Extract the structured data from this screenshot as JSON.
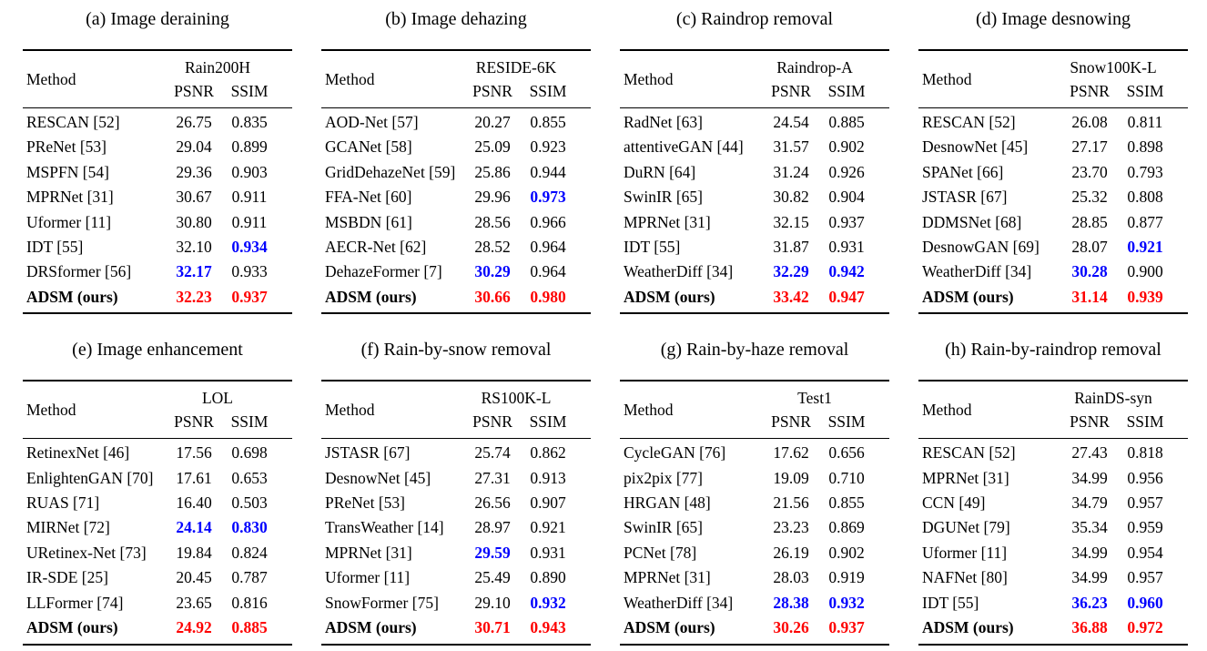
{
  "colors": {
    "best": "#fe0000",
    "second": "#0000fe",
    "text": "#000000"
  },
  "headers": {
    "method": "Method",
    "psnr": "PSNR",
    "ssim": "SSIM"
  },
  "tables": [
    {
      "caption": "(a) Image deraining",
      "dataset": "Rain200H",
      "rows": [
        {
          "method": "RESCAN [52]",
          "psnr": "26.75",
          "ssim": "0.835"
        },
        {
          "method": "PReNet [53]",
          "psnr": "29.04",
          "ssim": "0.899"
        },
        {
          "method": "MSPFN [54]",
          "psnr": "29.36",
          "ssim": "0.903"
        },
        {
          "method": "MPRNet [31]",
          "psnr": "30.67",
          "ssim": "0.911"
        },
        {
          "method": "Uformer [11]",
          "psnr": "30.80",
          "ssim": "0.911"
        },
        {
          "method": "IDT [55]",
          "psnr": "32.10",
          "ssim": "0.934",
          "ssim_c": "second"
        },
        {
          "method": "DRSformer [56]",
          "psnr": "32.17",
          "psnr_c": "second",
          "ssim": "0.933"
        },
        {
          "method": "ADSM (ours)",
          "bold": true,
          "psnr": "32.23",
          "psnr_c": "best",
          "ssim": "0.937",
          "ssim_c": "best"
        }
      ]
    },
    {
      "caption": "(b) Image dehazing",
      "dataset": "RESIDE-6K",
      "rows": [
        {
          "method": "AOD-Net [57]",
          "psnr": "20.27",
          "ssim": "0.855"
        },
        {
          "method": "GCANet [58]",
          "psnr": "25.09",
          "ssim": "0.923"
        },
        {
          "method": "GridDehazeNet [59]",
          "psnr": "25.86",
          "ssim": "0.944"
        },
        {
          "method": "FFA-Net [60]",
          "psnr": "29.96",
          "ssim": "0.973",
          "ssim_c": "second"
        },
        {
          "method": "MSBDN [61]",
          "psnr": "28.56",
          "ssim": "0.966"
        },
        {
          "method": "AECR-Net [62]",
          "psnr": "28.52",
          "ssim": "0.964"
        },
        {
          "method": "DehazeFormer [7]",
          "psnr": "30.29",
          "psnr_c": "second",
          "ssim": "0.964"
        },
        {
          "method": "ADSM (ours)",
          "bold": true,
          "psnr": "30.66",
          "psnr_c": "best",
          "ssim": "0.980",
          "ssim_c": "best"
        }
      ]
    },
    {
      "caption": "(c) Raindrop removal",
      "dataset": "Raindrop-A",
      "rows": [
        {
          "method": "RadNet [63]",
          "psnr": "24.54",
          "ssim": "0.885"
        },
        {
          "method": "attentiveGAN [44]",
          "psnr": "31.57",
          "ssim": "0.902"
        },
        {
          "method": "DuRN [64]",
          "psnr": "31.24",
          "ssim": "0.926"
        },
        {
          "method": "SwinIR [65]",
          "psnr": "30.82",
          "ssim": "0.904"
        },
        {
          "method": "MPRNet [31]",
          "psnr": "32.15",
          "ssim": "0.937"
        },
        {
          "method": "IDT [55]",
          "psnr": "31.87",
          "ssim": "0.931"
        },
        {
          "method": "WeatherDiff [34]",
          "psnr": "32.29",
          "psnr_c": "second",
          "ssim": "0.942",
          "ssim_c": "second"
        },
        {
          "method": "ADSM (ours)",
          "bold": true,
          "psnr": "33.42",
          "psnr_c": "best",
          "ssim": "0.947",
          "ssim_c": "best"
        }
      ]
    },
    {
      "caption": "(d) Image desnowing",
      "dataset": "Snow100K-L",
      "rows": [
        {
          "method": "RESCAN [52]",
          "psnr": "26.08",
          "ssim": "0.811"
        },
        {
          "method": "DesnowNet [45]",
          "psnr": "27.17",
          "ssim": "0.898"
        },
        {
          "method": "SPANet [66]",
          "psnr": "23.70",
          "ssim": "0.793"
        },
        {
          "method": "JSTASR [67]",
          "psnr": "25.32",
          "ssim": "0.808"
        },
        {
          "method": "DDMSNet [68]",
          "psnr": "28.85",
          "ssim": "0.877"
        },
        {
          "method": "DesnowGAN [69]",
          "psnr": "28.07",
          "ssim": "0.921",
          "ssim_c": "second"
        },
        {
          "method": "WeatherDiff [34]",
          "psnr": "30.28",
          "psnr_c": "second",
          "ssim": "0.900"
        },
        {
          "method": "ADSM (ours)",
          "bold": true,
          "psnr": "31.14",
          "psnr_c": "best",
          "ssim": "0.939",
          "ssim_c": "best"
        }
      ]
    },
    {
      "caption": "(e) Image enhancement",
      "dataset": "LOL",
      "rows": [
        {
          "method": "RetinexNet [46]",
          "psnr": "17.56",
          "ssim": "0.698"
        },
        {
          "method": "EnlightenGAN [70]",
          "psnr": "17.61",
          "ssim": "0.653"
        },
        {
          "method": "RUAS [71]",
          "psnr": "16.40",
          "ssim": "0.503"
        },
        {
          "method": "MIRNet [72]",
          "psnr": "24.14",
          "psnr_c": "second",
          "ssim": "0.830",
          "ssim_c": "second"
        },
        {
          "method": "URetinex-Net [73]",
          "psnr": "19.84",
          "ssim": "0.824"
        },
        {
          "method": "IR-SDE [25]",
          "psnr": "20.45",
          "ssim": "0.787"
        },
        {
          "method": "LLFormer [74]",
          "psnr": "23.65",
          "ssim": "0.816"
        },
        {
          "method": "ADSM (ours)",
          "bold": true,
          "psnr": "24.92",
          "psnr_c": "best",
          "ssim": "0.885",
          "ssim_c": "best"
        }
      ]
    },
    {
      "caption": "(f) Rain-by-snow removal",
      "dataset": "RS100K-L",
      "rows": [
        {
          "method": "JSTASR [67]",
          "psnr": "25.74",
          "ssim": "0.862"
        },
        {
          "method": "DesnowNet [45]",
          "psnr": "27.31",
          "ssim": "0.913"
        },
        {
          "method": "PReNet [53]",
          "psnr": "26.56",
          "ssim": "0.907"
        },
        {
          "method": "TransWeather [14]",
          "psnr": "28.97",
          "ssim": "0.921"
        },
        {
          "method": "MPRNet [31]",
          "psnr": "29.59",
          "psnr_c": "second",
          "ssim": "0.931"
        },
        {
          "method": "Uformer [11]",
          "psnr": "25.49",
          "ssim": "0.890"
        },
        {
          "method": "SnowFormer [75]",
          "psnr": "29.10",
          "ssim": "0.932",
          "ssim_c": "second"
        },
        {
          "method": "ADSM (ours)",
          "bold": true,
          "psnr": "30.71",
          "psnr_c": "best",
          "ssim": "0.943",
          "ssim_c": "best"
        }
      ]
    },
    {
      "caption": "(g) Rain-by-haze removal",
      "dataset": "Test1",
      "rows": [
        {
          "method": "CycleGAN [76]",
          "psnr": "17.62",
          "ssim": "0.656"
        },
        {
          "method": "pix2pix [77]",
          "psnr": "19.09",
          "ssim": "0.710"
        },
        {
          "method": "HRGAN [48]",
          "psnr": "21.56",
          "ssim": "0.855"
        },
        {
          "method": "SwinIR [65]",
          "psnr": "23.23",
          "ssim": "0.869"
        },
        {
          "method": "PCNet [78]",
          "psnr": "26.19",
          "ssim": "0.902"
        },
        {
          "method": "MPRNet [31]",
          "psnr": "28.03",
          "ssim": "0.919"
        },
        {
          "method": "WeatherDiff [34]",
          "psnr": "28.38",
          "psnr_c": "second",
          "ssim": "0.932",
          "ssim_c": "second"
        },
        {
          "method": "ADSM (ours)",
          "bold": true,
          "psnr": "30.26",
          "psnr_c": "best",
          "ssim": "0.937",
          "ssim_c": "best"
        }
      ]
    },
    {
      "caption": "(h) Rain-by-raindrop removal",
      "dataset": "RainDS-syn",
      "rows": [
        {
          "method": "RESCAN [52]",
          "psnr": "27.43",
          "ssim": "0.818"
        },
        {
          "method": "MPRNet [31]",
          "psnr": "34.99",
          "ssim": "0.956"
        },
        {
          "method": "CCN [49]",
          "psnr": "34.79",
          "ssim": "0.957"
        },
        {
          "method": "DGUNet [79]",
          "psnr": "35.34",
          "ssim": "0.959"
        },
        {
          "method": "Uformer [11]",
          "psnr": "34.99",
          "ssim": "0.954"
        },
        {
          "method": "NAFNet [80]",
          "psnr": "34.99",
          "ssim": "0.957"
        },
        {
          "method": "IDT [55]",
          "psnr": "36.23",
          "psnr_c": "second",
          "ssim": "0.960",
          "ssim_c": "second"
        },
        {
          "method": "ADSM (ours)",
          "bold": true,
          "psnr": "36.88",
          "psnr_c": "best",
          "ssim": "0.972",
          "ssim_c": "best"
        }
      ]
    }
  ]
}
